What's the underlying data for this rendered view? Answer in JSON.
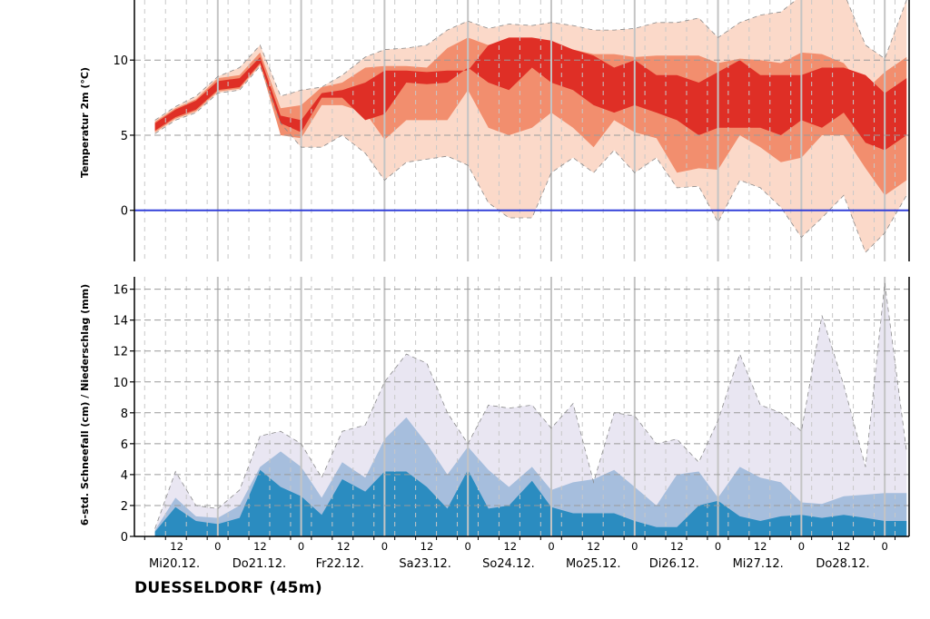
{
  "station": "DUESSELDORF (45m)",
  "colors": {
    "temp_outer": "#fbd9c9",
    "temp_mid": "#f28e6e",
    "temp_inner": "#df2f26",
    "zero_line": "#3340d9",
    "precip_outer": "#e9e6f2",
    "precip_mid": "#a6bedd",
    "precip_inner": "#2b8cc0"
  },
  "time_axis": {
    "t_min": 0,
    "t_max": 30.2,
    "day_labels": [
      {
        "t": 0,
        "label": "Mi20.12."
      },
      {
        "t": 3.25,
        "label": "Do21.12."
      },
      {
        "t": 6.5,
        "label": "Fr22.12."
      },
      {
        "t": 9.75,
        "label": "Sa23.12."
      },
      {
        "t": 13,
        "label": "So24.12."
      },
      {
        "t": 16.25,
        "label": "Mo25.12."
      },
      {
        "t": 19.5,
        "label": "Di26.12."
      },
      {
        "t": 22.75,
        "label": "Mi27.12."
      },
      {
        "t": 26,
        "label": "Do28.12."
      }
    ],
    "hour_labels": [
      {
        "t": 1.65,
        "label": "12"
      },
      {
        "t": 3.25,
        "label": "0"
      },
      {
        "t": 4.9,
        "label": "12"
      },
      {
        "t": 6.5,
        "label": "0"
      },
      {
        "t": 8.15,
        "label": "12"
      },
      {
        "t": 9.75,
        "label": "0"
      },
      {
        "t": 11.4,
        "label": "12"
      },
      {
        "t": 13,
        "label": "0"
      },
      {
        "t": 14.65,
        "label": "12"
      },
      {
        "t": 16.25,
        "label": "0"
      },
      {
        "t": 17.9,
        "label": "12"
      },
      {
        "t": 19.5,
        "label": "0"
      },
      {
        "t": 21.15,
        "label": "12"
      },
      {
        "t": 22.75,
        "label": "0"
      },
      {
        "t": 24.4,
        "label": "12"
      },
      {
        "t": 26,
        "label": "0"
      },
      {
        "t": 27.65,
        "label": "12"
      },
      {
        "t": 29.25,
        "label": "0"
      }
    ],
    "midnights": [
      3.25,
      6.5,
      9.75,
      13,
      16.25,
      19.5,
      22.75,
      26,
      29.25
    ]
  },
  "chart_data": [
    {
      "type": "area",
      "title": "",
      "ylabel": "Temperatur 2m (°C)",
      "ylim": [
        -3.4,
        14
      ],
      "yticks": [
        0,
        5,
        10
      ],
      "grid": true,
      "zero_line": 0,
      "x": [
        0.8,
        1.6,
        2.4,
        3.25,
        4.1,
        4.9,
        5.7,
        6.5,
        7.3,
        8.1,
        9.0,
        9.75,
        10.6,
        11.4,
        12.2,
        13.0,
        13.8,
        14.6,
        15.5,
        16.25,
        17.1,
        17.9,
        18.7,
        19.5,
        20.35,
        21.15,
        22.0,
        22.75,
        23.6,
        24.4,
        25.2,
        26.0,
        26.8,
        27.65,
        28.5,
        29.25,
        30.1
      ],
      "series": [
        {
          "band": "outer_low",
          "values": [
            5.1,
            6.0,
            6.5,
            7.8,
            8.0,
            9.6,
            5.8,
            4.2,
            4.2,
            5.0,
            3.8,
            2.0,
            3.2,
            3.4,
            3.6,
            3.0,
            0.5,
            -0.5,
            -0.5,
            2.5,
            3.5,
            2.5,
            4.0,
            2.5,
            3.5,
            1.5,
            1.6,
            -0.8,
            2.0,
            1.5,
            0.2,
            -1.8,
            -0.5,
            1.0,
            -2.8,
            -1.5,
            1.0
          ]
        },
        {
          "band": "outer_high",
          "values": [
            6.0,
            6.9,
            7.6,
            8.9,
            9.5,
            11.0,
            7.6,
            8.0,
            8.2,
            9.0,
            10.2,
            10.7,
            10.8,
            11.0,
            12.0,
            12.6,
            12.1,
            12.4,
            12.3,
            12.5,
            12.3,
            12.0,
            12.0,
            12.1,
            12.5,
            12.5,
            12.8,
            11.5,
            12.5,
            13.0,
            13.2,
            14.3,
            14.2,
            14.5,
            11.0,
            10.1,
            14.0
          ]
        },
        {
          "band": "mid_low",
          "values": [
            5.2,
            6.1,
            6.6,
            7.9,
            8.1,
            9.7,
            5.0,
            4.8,
            7.0,
            7.0,
            6.5,
            4.7,
            6.0,
            6.0,
            6.0,
            8.0,
            5.5,
            5.0,
            5.5,
            6.5,
            5.5,
            4.2,
            6.0,
            5.2,
            4.8,
            2.5,
            2.8,
            2.7,
            5.0,
            4.2,
            3.2,
            3.5,
            5.0,
            5.0,
            2.8,
            1.0,
            2.0
          ]
        },
        {
          "band": "mid_high",
          "values": [
            5.9,
            6.8,
            7.4,
            8.8,
            9.0,
            10.5,
            6.8,
            7.0,
            8.2,
            8.5,
            9.5,
            9.6,
            9.6,
            9.5,
            10.8,
            11.5,
            11.0,
            11.3,
            11.0,
            11.0,
            10.7,
            10.4,
            10.4,
            10.2,
            10.3,
            10.3,
            10.3,
            9.8,
            10.1,
            10.0,
            9.8,
            10.5,
            10.4,
            9.8,
            8.0,
            9.2,
            10.2
          ]
        },
        {
          "band": "inner_low",
          "values": [
            5.3,
            6.2,
            6.7,
            8.0,
            8.2,
            9.8,
            5.8,
            5.2,
            7.5,
            7.5,
            6.0,
            6.4,
            8.5,
            8.4,
            8.5,
            9.5,
            8.5,
            8.0,
            9.5,
            8.5,
            8.0,
            7.0,
            6.5,
            7.0,
            6.5,
            6.0,
            5.0,
            5.5,
            5.5,
            5.5,
            5.0,
            6.0,
            5.5,
            6.5,
            4.5,
            4.0,
            5.0
          ]
        },
        {
          "band": "inner_high",
          "values": [
            5.8,
            6.7,
            7.3,
            8.6,
            8.8,
            10.2,
            6.3,
            6.0,
            7.8,
            8.0,
            8.5,
            9.3,
            9.3,
            9.2,
            9.3,
            9.3,
            11.0,
            11.5,
            11.5,
            11.3,
            10.7,
            10.3,
            9.5,
            10.0,
            9.0,
            9.0,
            8.5,
            9.2,
            10.0,
            9.0,
            9.0,
            9.0,
            9.5,
            9.5,
            9.0,
            7.8,
            8.8
          ]
        }
      ]
    },
    {
      "type": "area",
      "title": "",
      "ylabel": "6-std. Schneefall (cm) / Niederschlag (mm)",
      "ylim": [
        0,
        16.8
      ],
      "yticks": [
        0,
        2,
        4,
        6,
        8,
        10,
        12,
        14,
        16
      ],
      "grid": true,
      "x": [
        0.8,
        1.6,
        2.4,
        3.25,
        4.1,
        4.9,
        5.7,
        6.5,
        7.3,
        8.1,
        9.0,
        9.75,
        10.6,
        11.4,
        12.2,
        13.0,
        13.8,
        14.6,
        15.5,
        16.25,
        17.1,
        17.9,
        18.7,
        19.5,
        20.35,
        21.15,
        22.0,
        22.75,
        23.6,
        24.4,
        25.2,
        26.0,
        26.8,
        27.65,
        28.5,
        29.25,
        30.1
      ],
      "series": [
        {
          "band": "outer",
          "values": [
            0.5,
            4.2,
            2.0,
            1.8,
            3.0,
            6.5,
            6.8,
            6.0,
            3.8,
            6.8,
            7.2,
            10.0,
            11.8,
            11.2,
            8.0,
            6.0,
            8.5,
            8.3,
            8.5,
            7.0,
            8.6,
            3.5,
            8.0,
            7.8,
            6.0,
            6.3,
            4.8,
            7.5,
            11.8,
            8.5,
            8.0,
            6.8,
            14.3,
            9.8,
            4.5,
            16.4,
            5.5
          ]
        },
        {
          "band": "mid",
          "values": [
            0.4,
            2.5,
            1.3,
            1.2,
            2.0,
            4.5,
            5.5,
            4.5,
            2.5,
            4.8,
            3.8,
            6.3,
            7.7,
            6.0,
            4.0,
            5.8,
            4.3,
            3.2,
            4.5,
            3.0,
            3.5,
            3.7,
            4.3,
            3.2,
            2.0,
            4.0,
            4.2,
            2.5,
            4.5,
            3.8,
            3.5,
            2.2,
            2.1,
            2.6,
            2.7,
            2.8,
            2.8
          ]
        },
        {
          "band": "inner",
          "values": [
            0.3,
            1.9,
            1.0,
            0.8,
            1.2,
            4.3,
            3.2,
            2.6,
            1.4,
            3.7,
            2.9,
            4.2,
            4.2,
            3.2,
            1.8,
            4.3,
            1.8,
            2.0,
            3.6,
            1.9,
            1.5,
            1.5,
            1.5,
            1.0,
            0.6,
            0.6,
            2.0,
            2.3,
            1.3,
            1.0,
            1.3,
            1.4,
            1.2,
            1.4,
            1.2,
            1.0,
            1.0
          ]
        }
      ]
    }
  ]
}
